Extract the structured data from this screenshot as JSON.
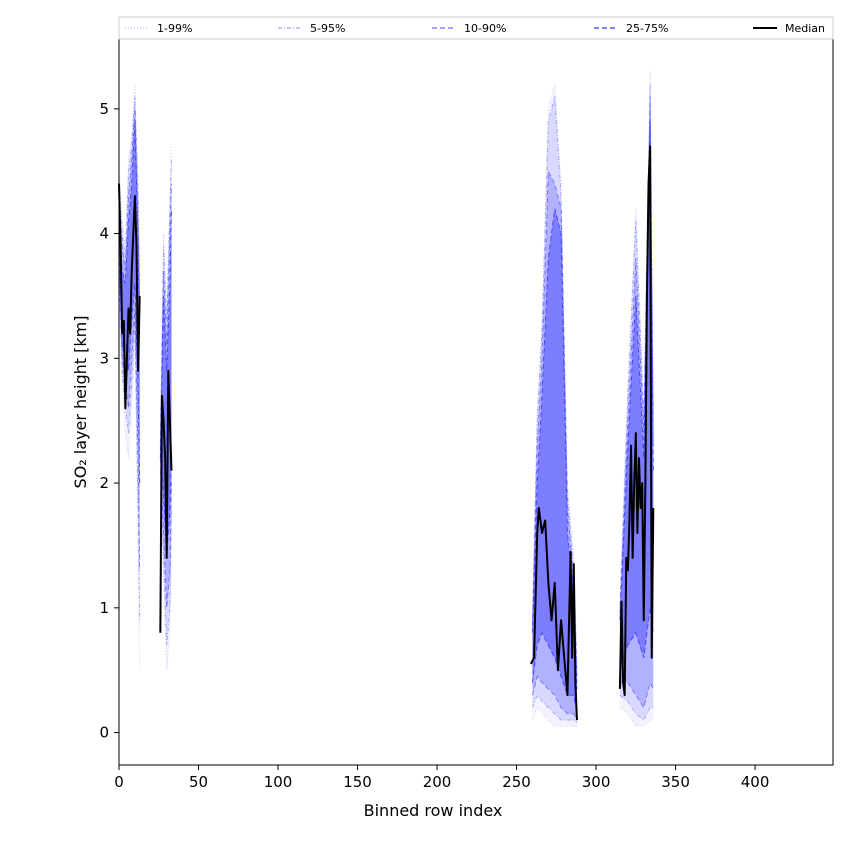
{
  "chart_data": {
    "type": "line",
    "xlabel": "Binned row index",
    "ylabel": "SO₂ layer height [km]",
    "xlim": [
      0,
      449
    ],
    "ylim": [
      -0.26,
      5.56
    ],
    "xticks": [
      0,
      50,
      100,
      150,
      200,
      250,
      300,
      350,
      400
    ],
    "yticks": [
      0,
      1,
      2,
      3,
      4,
      5
    ],
    "grid": false,
    "legend_position": "top",
    "series": [
      {
        "name": "1-99%",
        "color": "#c8c8ff",
        "style": "dotted",
        "lower": [
          [
            0,
            3.6
          ],
          [
            2,
            2.8
          ],
          [
            4,
            2.4
          ],
          [
            6,
            2.2
          ],
          [
            8,
            2.6
          ],
          [
            10,
            3.2
          ],
          [
            12,
            1.5
          ],
          [
            13,
            0.5
          ],
          [
            26,
            2.0
          ],
          [
            28,
            1.2
          ],
          [
            30,
            0.5
          ],
          [
            32,
            0.8
          ],
          [
            33,
            1.6
          ],
          [
            260,
            0.1
          ],
          [
            263,
            0.2
          ],
          [
            266,
            0.15
          ],
          [
            270,
            0.1
          ],
          [
            274,
            0.05
          ],
          [
            278,
            0.05
          ],
          [
            282,
            0.05
          ],
          [
            286,
            0.05
          ],
          [
            288,
            0.05
          ],
          [
            315,
            0.2
          ],
          [
            320,
            0.15
          ],
          [
            325,
            0.05
          ],
          [
            330,
            0.05
          ],
          [
            334,
            0.1
          ],
          [
            336,
            0.1
          ]
        ],
        "upper": [
          [
            0,
            4.5
          ],
          [
            2,
            4.1
          ],
          [
            4,
            3.9
          ],
          [
            6,
            4.6
          ],
          [
            8,
            4.8
          ],
          [
            10,
            5.2
          ],
          [
            12,
            4.4
          ],
          [
            13,
            3.6
          ],
          [
            26,
            2.4
          ],
          [
            28,
            4.0
          ],
          [
            30,
            3.4
          ],
          [
            32,
            4.3
          ],
          [
            33,
            4.7
          ],
          [
            260,
            1.0
          ],
          [
            263,
            2.6
          ],
          [
            266,
            3.3
          ],
          [
            270,
            5.0
          ],
          [
            274,
            5.2
          ],
          [
            278,
            4.4
          ],
          [
            282,
            2.0
          ],
          [
            286,
            1.4
          ],
          [
            288,
            0.6
          ],
          [
            315,
            1.1
          ],
          [
            320,
            2.8
          ],
          [
            325,
            4.2
          ],
          [
            330,
            2.6
          ],
          [
            334,
            5.3
          ],
          [
            336,
            2.6
          ]
        ]
      },
      {
        "name": "5-95%",
        "color": "#a0a0ff",
        "style": "dashdot",
        "lower": [
          [
            0,
            3.7
          ],
          [
            2,
            2.9
          ],
          [
            4,
            2.6
          ],
          [
            6,
            2.4
          ],
          [
            8,
            2.8
          ],
          [
            10,
            3.3
          ],
          [
            12,
            1.8
          ],
          [
            13,
            0.9
          ],
          [
            26,
            2.1
          ],
          [
            28,
            1.4
          ],
          [
            30,
            0.7
          ],
          [
            32,
            1.0
          ],
          [
            33,
            1.8
          ],
          [
            260,
            0.2
          ],
          [
            263,
            0.3
          ],
          [
            266,
            0.25
          ],
          [
            270,
            0.2
          ],
          [
            274,
            0.15
          ],
          [
            278,
            0.1
          ],
          [
            282,
            0.1
          ],
          [
            286,
            0.1
          ],
          [
            288,
            0.08
          ],
          [
            315,
            0.3
          ],
          [
            320,
            0.25
          ],
          [
            325,
            0.15
          ],
          [
            330,
            0.1
          ],
          [
            334,
            0.2
          ],
          [
            336,
            0.2
          ]
        ],
        "upper": [
          [
            0,
            4.4
          ],
          [
            2,
            4.0
          ],
          [
            4,
            3.8
          ],
          [
            6,
            4.5
          ],
          [
            8,
            4.7
          ],
          [
            10,
            5.1
          ],
          [
            12,
            4.3
          ],
          [
            13,
            3.5
          ],
          [
            26,
            2.3
          ],
          [
            28,
            3.9
          ],
          [
            30,
            3.3
          ],
          [
            32,
            4.2
          ],
          [
            33,
            4.6
          ],
          [
            260,
            0.9
          ],
          [
            263,
            2.5
          ],
          [
            266,
            3.2
          ],
          [
            270,
            4.9
          ],
          [
            274,
            5.1
          ],
          [
            278,
            4.3
          ],
          [
            282,
            1.9
          ],
          [
            286,
            1.3
          ],
          [
            288,
            0.5
          ],
          [
            315,
            1.0
          ],
          [
            320,
            2.7
          ],
          [
            325,
            4.1
          ],
          [
            330,
            2.5
          ],
          [
            334,
            5.2
          ],
          [
            336,
            2.5
          ]
        ]
      },
      {
        "name": "10-90%",
        "color": "#7070ff",
        "style": "dashed",
        "lower": [
          [
            0,
            3.8
          ],
          [
            2,
            3.0
          ],
          [
            4,
            2.8
          ],
          [
            6,
            2.6
          ],
          [
            8,
            3.0
          ],
          [
            10,
            3.4
          ],
          [
            12,
            2.2
          ],
          [
            13,
            1.3
          ],
          [
            26,
            2.2
          ],
          [
            28,
            1.6
          ],
          [
            30,
            1.0
          ],
          [
            32,
            1.3
          ],
          [
            33,
            2.0
          ],
          [
            260,
            0.3
          ],
          [
            263,
            0.45
          ],
          [
            266,
            0.4
          ],
          [
            270,
            0.35
          ],
          [
            274,
            0.3
          ],
          [
            278,
            0.2
          ],
          [
            282,
            0.15
          ],
          [
            286,
            0.15
          ],
          [
            288,
            0.1
          ],
          [
            315,
            0.4
          ],
          [
            320,
            0.4
          ],
          [
            325,
            0.3
          ],
          [
            330,
            0.2
          ],
          [
            334,
            0.4
          ],
          [
            336,
            0.35
          ]
        ],
        "upper": [
          [
            0,
            4.3
          ],
          [
            2,
            3.9
          ],
          [
            4,
            3.7
          ],
          [
            6,
            4.3
          ],
          [
            8,
            4.6
          ],
          [
            10,
            5.0
          ],
          [
            12,
            4.1
          ],
          [
            13,
            3.4
          ],
          [
            26,
            2.25
          ],
          [
            28,
            3.7
          ],
          [
            30,
            3.1
          ],
          [
            32,
            4.0
          ],
          [
            33,
            4.4
          ],
          [
            260,
            0.85
          ],
          [
            263,
            2.3
          ],
          [
            266,
            3.0
          ],
          [
            270,
            4.5
          ],
          [
            274,
            4.4
          ],
          [
            278,
            4.2
          ],
          [
            282,
            1.8
          ],
          [
            286,
            1.2
          ],
          [
            288,
            0.45
          ],
          [
            315,
            0.95
          ],
          [
            320,
            2.5
          ],
          [
            325,
            3.8
          ],
          [
            330,
            2.4
          ],
          [
            334,
            5.1
          ],
          [
            336,
            2.3
          ]
        ]
      },
      {
        "name": "25-75%",
        "color": "#4040ff",
        "style": "dashed",
        "lower": [
          [
            0,
            3.9
          ],
          [
            2,
            3.1
          ],
          [
            4,
            3.0
          ],
          [
            6,
            2.9
          ],
          [
            8,
            3.3
          ],
          [
            10,
            3.6
          ],
          [
            12,
            2.7
          ],
          [
            13,
            2.0
          ],
          [
            26,
            2.3
          ],
          [
            28,
            1.9
          ],
          [
            30,
            1.4
          ],
          [
            32,
            1.8
          ],
          [
            33,
            2.2
          ],
          [
            260,
            0.4
          ],
          [
            263,
            0.7
          ],
          [
            266,
            0.8
          ],
          [
            270,
            0.7
          ],
          [
            274,
            0.6
          ],
          [
            278,
            0.45
          ],
          [
            282,
            0.3
          ],
          [
            286,
            0.3
          ],
          [
            288,
            0.15
          ],
          [
            315,
            0.5
          ],
          [
            320,
            0.7
          ],
          [
            325,
            0.8
          ],
          [
            330,
            0.6
          ],
          [
            334,
            1.0
          ],
          [
            336,
            0.8
          ]
        ],
        "upper": [
          [
            0,
            4.2
          ],
          [
            2,
            3.7
          ],
          [
            4,
            3.6
          ],
          [
            6,
            4.1
          ],
          [
            8,
            4.4
          ],
          [
            10,
            4.9
          ],
          [
            12,
            3.9
          ],
          [
            13,
            3.2
          ],
          [
            26,
            2.2
          ],
          [
            28,
            3.5
          ],
          [
            30,
            2.9
          ],
          [
            32,
            3.6
          ],
          [
            33,
            4.2
          ],
          [
            260,
            0.8
          ],
          [
            263,
            2.0
          ],
          [
            266,
            2.7
          ],
          [
            270,
            3.8
          ],
          [
            274,
            4.2
          ],
          [
            278,
            4.0
          ],
          [
            282,
            1.6
          ],
          [
            286,
            1.1
          ],
          [
            288,
            0.35
          ],
          [
            315,
            0.9
          ],
          [
            320,
            2.3
          ],
          [
            325,
            3.5
          ],
          [
            330,
            2.2
          ],
          [
            334,
            4.9
          ],
          [
            336,
            2.1
          ]
        ]
      },
      {
        "name": "Median",
        "color": "#000000",
        "style": "solid",
        "segments": [
          [
            [
              0,
              4.4
            ],
            [
              1,
              3.9
            ],
            [
              2,
              3.2
            ],
            [
              3,
              3.3
            ],
            [
              4,
              2.6
            ],
            [
              5,
              3.0
            ],
            [
              6,
              3.4
            ],
            [
              7,
              3.2
            ],
            [
              8,
              3.7
            ],
            [
              9,
              4.0
            ],
            [
              10,
              4.3
            ],
            [
              11,
              3.9
            ],
            [
              12,
              2.9
            ],
            [
              13,
              3.5
            ]
          ],
          [
            [
              26,
              0.8
            ],
            [
              27,
              2.7
            ],
            [
              28,
              2.5
            ],
            [
              29,
              2.2
            ],
            [
              30,
              1.4
            ],
            [
              31,
              2.9
            ],
            [
              32,
              2.5
            ],
            [
              33,
              2.1
            ]
          ],
          [
            [
              259,
              0.55
            ],
            [
              261,
              0.6
            ],
            [
              263,
              1.6
            ],
            [
              264,
              1.8
            ],
            [
              266,
              1.6
            ],
            [
              268,
              1.7
            ],
            [
              270,
              1.2
            ],
            [
              272,
              0.9
            ],
            [
              274,
              1.2
            ],
            [
              276,
              0.5
            ],
            [
              278,
              0.9
            ],
            [
              280,
              0.6
            ],
            [
              282,
              0.3
            ],
            [
              284,
              1.45
            ],
            [
              285,
              0.6
            ],
            [
              286,
              1.35
            ],
            [
              287,
              0.4
            ],
            [
              288,
              0.1
            ]
          ],
          [
            [
              315,
              0.35
            ],
            [
              316,
              1.05
            ],
            [
              317,
              0.4
            ],
            [
              318,
              0.3
            ],
            [
              319,
              1.4
            ],
            [
              320,
              1.3
            ],
            [
              321,
              1.7
            ],
            [
              322,
              2.3
            ],
            [
              323,
              1.4
            ],
            [
              324,
              2.0
            ],
            [
              325,
              2.4
            ],
            [
              326,
              1.6
            ],
            [
              327,
              2.2
            ],
            [
              328,
              1.8
            ],
            [
              329,
              2.0
            ],
            [
              330,
              0.9
            ],
            [
              331,
              2.0
            ],
            [
              332,
              3.5
            ],
            [
              333,
              4.4
            ],
            [
              334,
              4.7
            ],
            [
              335,
              0.6
            ],
            [
              336,
              1.8
            ]
          ]
        ]
      }
    ]
  }
}
